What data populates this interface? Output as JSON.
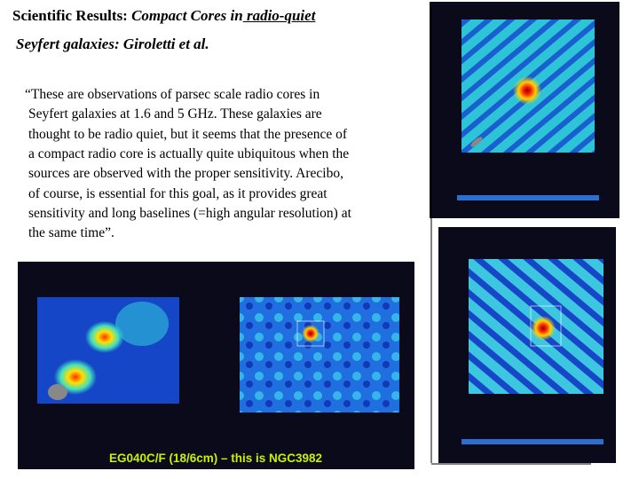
{
  "title": {
    "bold": "Scientific Results:",
    "italic": "Compact Cores in",
    "underlined": " radio-quiet",
    "line2": "Seyfert galaxies: Giroletti et al."
  },
  "quote": [
    "“These are observations of parsec scale radio cores in",
    "Seyfert galaxies at 1.6 and 5 GHz. These galaxies are",
    "thought to be radio quiet, but it seems that the presence of",
    "a compact radio core is actually quite ubiquitous when the",
    "sources are observed with the proper sensitivity. Arecibo,",
    "of course, is essential for this goal, as it provides  great",
    "sensitivity and long baselines (=high angular resolution) at",
    "the same time”."
  ],
  "caption": "EG040C/F (18/6cm) – this is NGC3982"
}
